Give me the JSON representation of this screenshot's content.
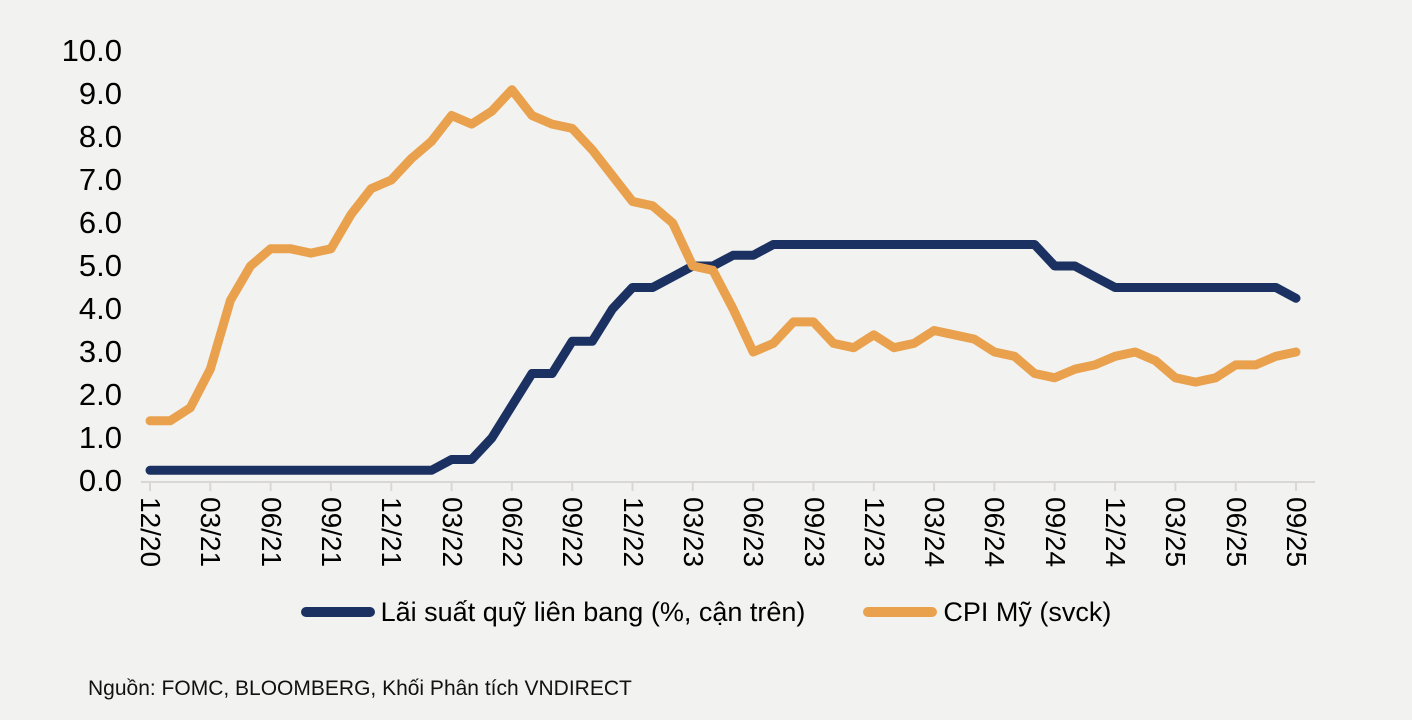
{
  "page": {
    "background": "#f2f2f0"
  },
  "colors": {
    "fed_line": "#1a3161",
    "cpi_line": "#e9a14d",
    "axis": "#d8d7d4",
    "text": "#000000"
  },
  "chart_data": {
    "type": "line",
    "title": "",
    "xlabel": "",
    "ylabel": "",
    "x_frequency": "monthly",
    "x_start": "12/20",
    "x_end": "09/25",
    "x_tick_labels": [
      "12/20",
      "03/21",
      "06/21",
      "09/21",
      "12/21",
      "03/22",
      "06/22",
      "09/22",
      "12/22",
      "03/23",
      "06/23",
      "09/23",
      "12/23",
      "03/24",
      "06/24",
      "09/24",
      "12/24",
      "03/25",
      "06/25",
      "09/25"
    ],
    "y_tick_values": [
      0,
      1,
      2,
      3,
      4,
      5,
      6,
      7,
      8,
      9,
      10
    ],
    "y_tick_labels": [
      "0.0",
      "1.0",
      "2.0",
      "3.0",
      "4.0",
      "5.0",
      "6.0",
      "7.0",
      "8.0",
      "9.0",
      "10.0"
    ],
    "ylim": [
      0,
      10
    ],
    "grid": "off",
    "legend_position": "bottom",
    "series": [
      {
        "name": "Lãi suất quỹ liên bang (%, cận trên)",
        "color": "#1a3161",
        "values": [
          0.25,
          0.25,
          0.25,
          0.25,
          0.25,
          0.25,
          0.25,
          0.25,
          0.25,
          0.25,
          0.25,
          0.25,
          0.25,
          0.25,
          0.25,
          0.5,
          0.5,
          1.0,
          1.75,
          2.5,
          2.5,
          3.25,
          3.25,
          4.0,
          4.5,
          4.5,
          4.75,
          5.0,
          5.0,
          5.25,
          5.25,
          5.5,
          5.5,
          5.5,
          5.5,
          5.5,
          5.5,
          5.5,
          5.5,
          5.5,
          5.5,
          5.5,
          5.5,
          5.5,
          5.5,
          5.0,
          5.0,
          4.75,
          4.5,
          4.5,
          4.5,
          4.5,
          4.5,
          4.5,
          4.5,
          4.5,
          4.5,
          4.25
        ]
      },
      {
        "name": "CPI Mỹ (svck)",
        "color": "#e9a14d",
        "values": [
          1.4,
          1.4,
          1.7,
          2.6,
          4.2,
          5.0,
          5.4,
          5.4,
          5.3,
          5.4,
          6.2,
          6.8,
          7.0,
          7.5,
          7.9,
          8.5,
          8.3,
          8.6,
          9.1,
          8.5,
          8.3,
          8.2,
          7.7,
          7.1,
          6.5,
          6.4,
          6.0,
          5.0,
          4.9,
          4.0,
          3.0,
          3.2,
          3.7,
          3.7,
          3.2,
          3.1,
          3.4,
          3.1,
          3.2,
          3.5,
          3.4,
          3.3,
          3.0,
          2.9,
          2.5,
          2.4,
          2.6,
          2.7,
          2.9,
          3.0,
          2.8,
          2.4,
          2.3,
          2.4,
          2.7,
          2.7,
          2.9,
          3.0
        ]
      }
    ]
  },
  "source_note": "Nguồn: FOMC, BLOOMBERG, Khối Phân tích VNDIRECT"
}
